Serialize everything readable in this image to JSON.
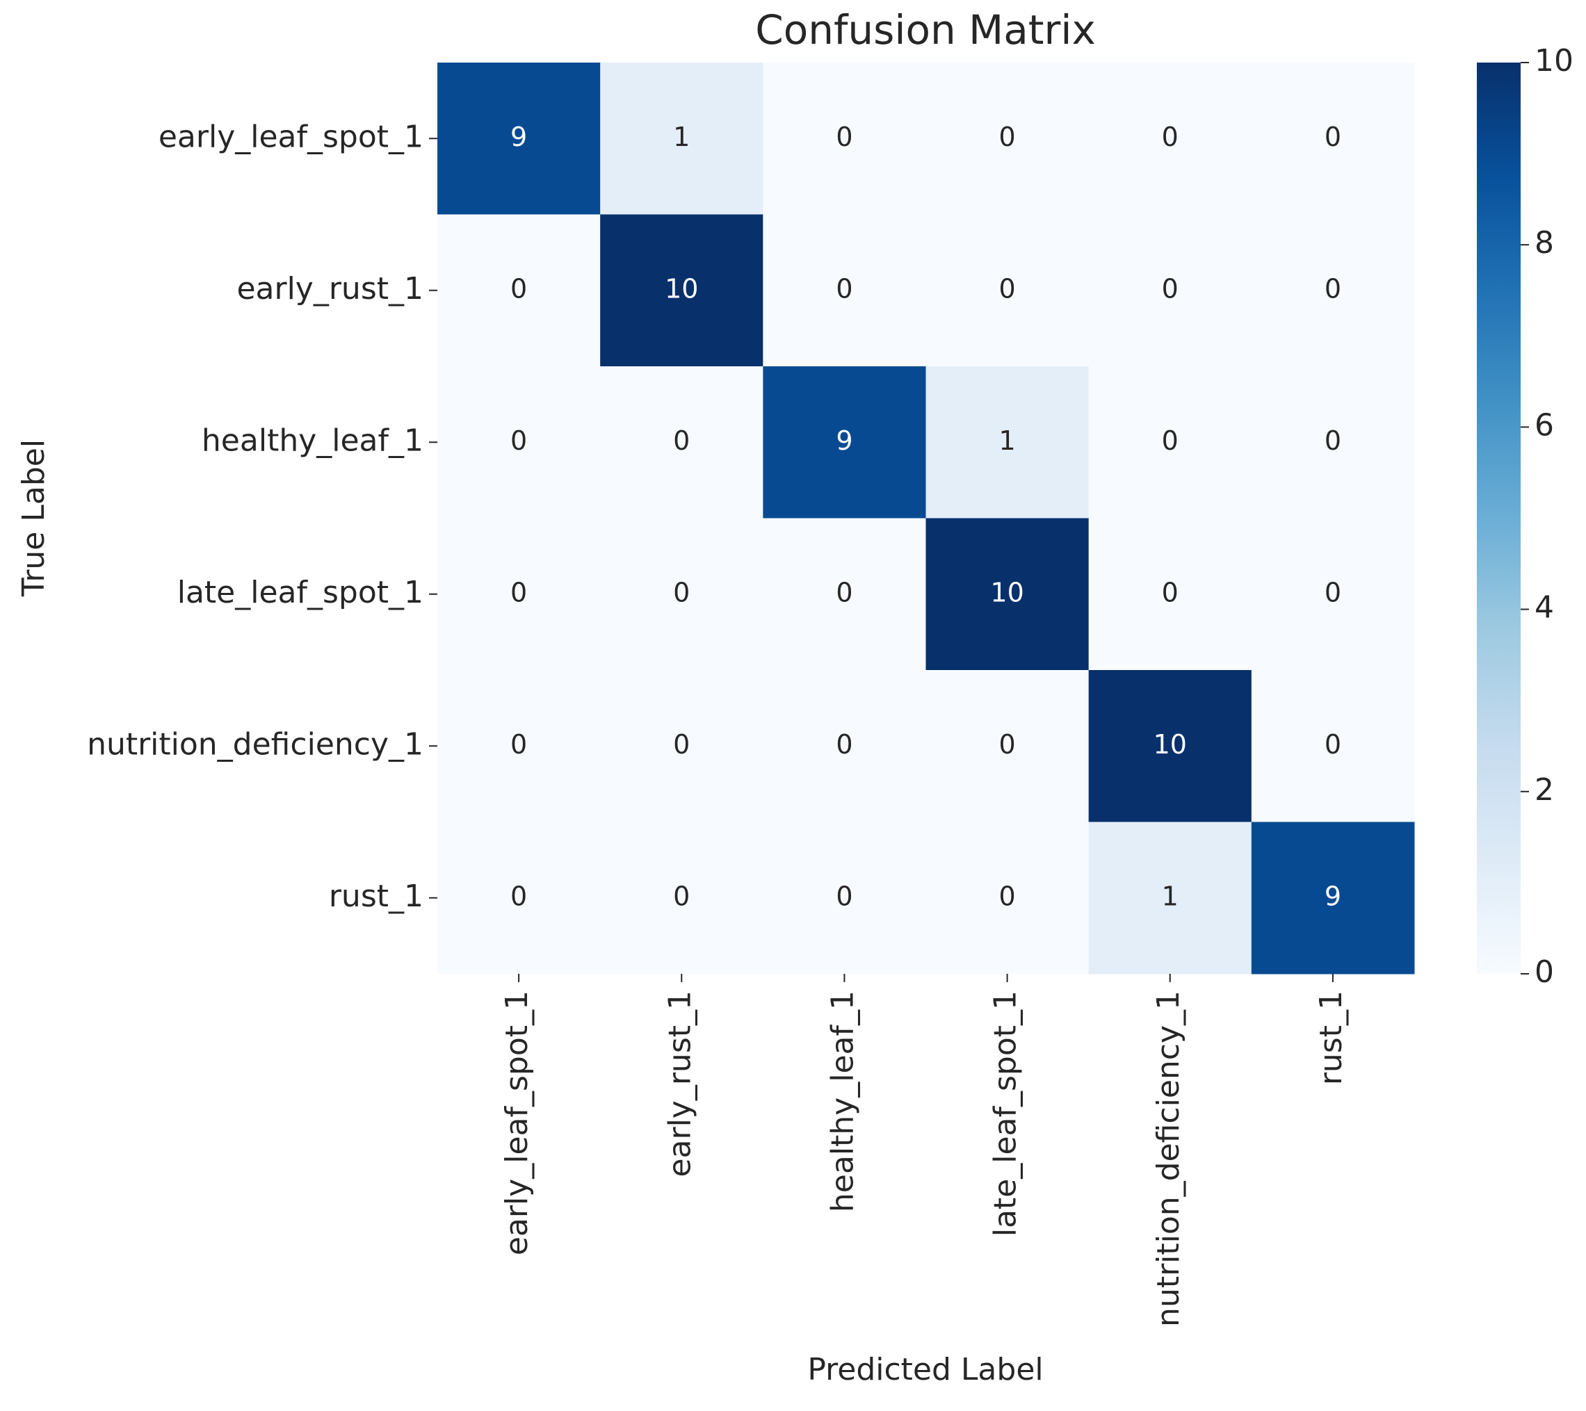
{
  "chart_data": {
    "type": "heatmap",
    "title": "Confusion Matrix",
    "x_label": "Predicted Label",
    "y_label": "True Label",
    "x_categories": [
      "early_leaf_spot_1",
      "early_rust_1",
      "healthy_leaf_1",
      "late_leaf_spot_1",
      "nutrition_deficiency_1",
      "rust_1"
    ],
    "y_categories": [
      "early_leaf_spot_1",
      "early_rust_1",
      "healthy_leaf_1",
      "late_leaf_spot_1",
      "nutrition_deficiency_1",
      "rust_1"
    ],
    "z": [
      [
        9,
        1,
        0,
        0,
        0,
        0
      ],
      [
        0,
        10,
        0,
        0,
        0,
        0
      ],
      [
        0,
        0,
        9,
        1,
        0,
        0
      ],
      [
        0,
        0,
        0,
        10,
        0,
        0
      ],
      [
        0,
        0,
        0,
        0,
        10,
        0
      ],
      [
        0,
        0,
        0,
        0,
        1,
        9
      ]
    ],
    "colormap": [
      "#f7fbff",
      "#deebf7",
      "#c6dbef",
      "#9ecae1",
      "#6baed6",
      "#4292c6",
      "#2171b5",
      "#08519c",
      "#08306b"
    ],
    "zlim": [
      0,
      10
    ],
    "zticks": [
      0,
      2,
      4,
      6,
      8,
      10
    ]
  }
}
